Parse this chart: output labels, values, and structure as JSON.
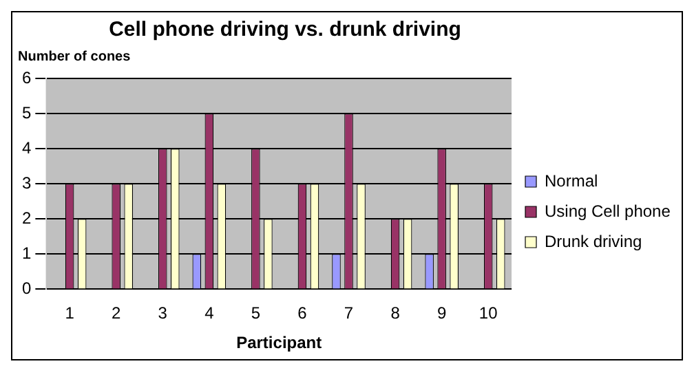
{
  "chart_data": {
    "type": "bar",
    "title": "Cell phone driving vs. drunk driving",
    "xlabel": "Participant",
    "ylabel": "Number of cones",
    "categories": [
      "1",
      "2",
      "3",
      "4",
      "5",
      "6",
      "7",
      "8",
      "9",
      "10"
    ],
    "series": [
      {
        "name": "Normal",
        "color": "#9999ff",
        "values": [
          0,
          0,
          0,
          1,
          0,
          0,
          1,
          0,
          1,
          0
        ]
      },
      {
        "name": "Using Cell phone",
        "color": "#993366",
        "values": [
          3,
          3,
          4,
          5,
          4,
          3,
          5,
          2,
          4,
          3
        ]
      },
      {
        "name": "Drunk driving",
        "color": "#ffffcc",
        "values": [
          2,
          3,
          4,
          3,
          2,
          3,
          3,
          2,
          3,
          2
        ]
      }
    ],
    "ylim": [
      0,
      6
    ],
    "yticks": [
      0,
      1,
      2,
      3,
      4,
      5,
      6
    ],
    "grid": "y",
    "legend": "right"
  }
}
